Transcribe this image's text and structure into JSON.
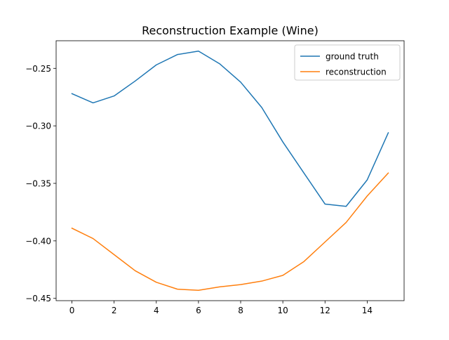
{
  "chart_data": {
    "type": "line",
    "title": "Reconstruction Example (Wine)",
    "xlabel": "",
    "ylabel": "",
    "x": [
      0,
      1,
      2,
      3,
      4,
      5,
      6,
      7,
      8,
      9,
      10,
      11,
      12,
      13,
      14,
      15
    ],
    "xlim": [
      -0.75,
      15.75
    ],
    "ylim": [
      -0.452,
      -0.226
    ],
    "xticks": [
      0,
      2,
      4,
      6,
      8,
      10,
      12,
      14
    ],
    "xtick_labels": [
      "0",
      "2",
      "4",
      "6",
      "8",
      "10",
      "12",
      "14"
    ],
    "yticks": [
      -0.25,
      -0.3,
      -0.35,
      -0.4,
      -0.45
    ],
    "ytick_labels": [
      "−0.25",
      "−0.30",
      "−0.35",
      "−0.40",
      "−0.45"
    ],
    "grid": false,
    "legend_position": "top-right",
    "series": [
      {
        "name": "ground truth",
        "color": "#1f77b4",
        "values": [
          -0.272,
          -0.28,
          -0.274,
          -0.261,
          -0.247,
          -0.238,
          -0.235,
          -0.246,
          -0.262,
          -0.284,
          -0.314,
          -0.341,
          -0.368,
          -0.37,
          -0.347,
          -0.306
        ]
      },
      {
        "name": "reconstruction",
        "color": "#ff7f0e",
        "values": [
          -0.389,
          -0.398,
          -0.412,
          -0.426,
          -0.436,
          -0.442,
          -0.443,
          -0.44,
          -0.438,
          -0.435,
          -0.43,
          -0.418,
          -0.401,
          -0.384,
          -0.361,
          -0.341
        ]
      }
    ]
  }
}
